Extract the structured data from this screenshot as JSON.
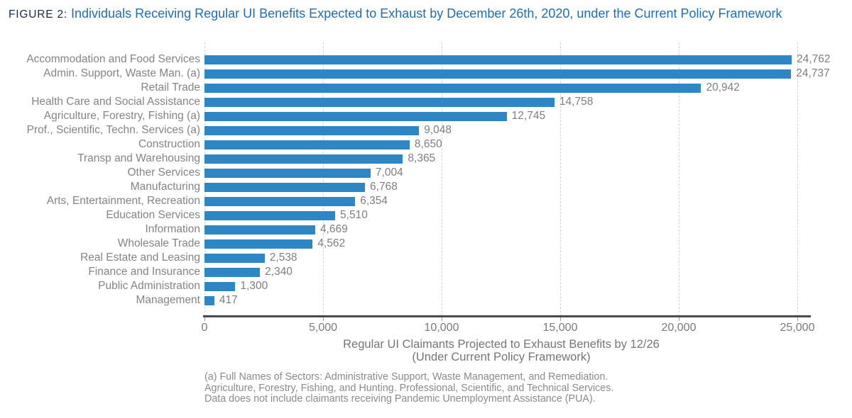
{
  "figure": {
    "label": "FIGURE 2:",
    "title": "Individuals Receiving Regular UI Benefits Expected to Exhaust by December 26th, 2020, under the Current Policy Framework"
  },
  "chart_data": {
    "type": "bar",
    "orientation": "horizontal",
    "categories": [
      "Accommodation and Food Services",
      "Admin. Support, Waste Man. (a)",
      "Retail Trade",
      "Health Care and Social Assistance",
      "Agriculture, Forestry, Fishing (a)",
      "Prof., Scientific, Techn. Services (a)",
      "Construction",
      "Transp and Warehousing",
      "Other Services",
      "Manufacturing",
      "Arts, Entertainment, Recreation",
      "Education Services",
      "Information",
      "Wholesale Trade",
      "Real Estate and Leasing",
      "Finance and Insurance",
      "Public Administration",
      "Management"
    ],
    "values": [
      24762,
      24737,
      20942,
      14758,
      12745,
      9048,
      8650,
      8365,
      7004,
      6768,
      6354,
      5510,
      4669,
      4562,
      2538,
      2340,
      1300,
      417
    ],
    "value_labels": [
      "24,762",
      "24,737",
      "20,942",
      "14,758",
      "12,745",
      "9,048",
      "8,650",
      "8,365",
      "7,004",
      "6,768",
      "6,354",
      "5,510",
      "4,669",
      "4,562",
      "2,538",
      "2,340",
      "1,300",
      "417"
    ],
    "xlim": [
      0,
      25000
    ],
    "x_ticks": [
      0,
      5000,
      10000,
      15000,
      20000,
      25000
    ],
    "x_tick_labels": [
      "0",
      "5,000",
      "10,000",
      "15,000",
      "20,000",
      "25,000"
    ],
    "grid": "vertical-dashed",
    "legend": "none",
    "bar_color": "#2E86C4",
    "xlabel_line1": "Regular UI Claimants Projected to Exhaust Benefits by 12/26",
    "xlabel_line2": "(Under Current Policy Framework)",
    "footnote_lines": [
      "(a) Full Names of Sectors: Administrative Support, Waste Management, and Remediation.",
      "Agriculture, Forestry, Fishing, and Hunting. Professional, Scientific, and Technical Services.",
      "Data does not include claimants receiving Pandemic Unemployment Assistance (PUA)."
    ]
  }
}
